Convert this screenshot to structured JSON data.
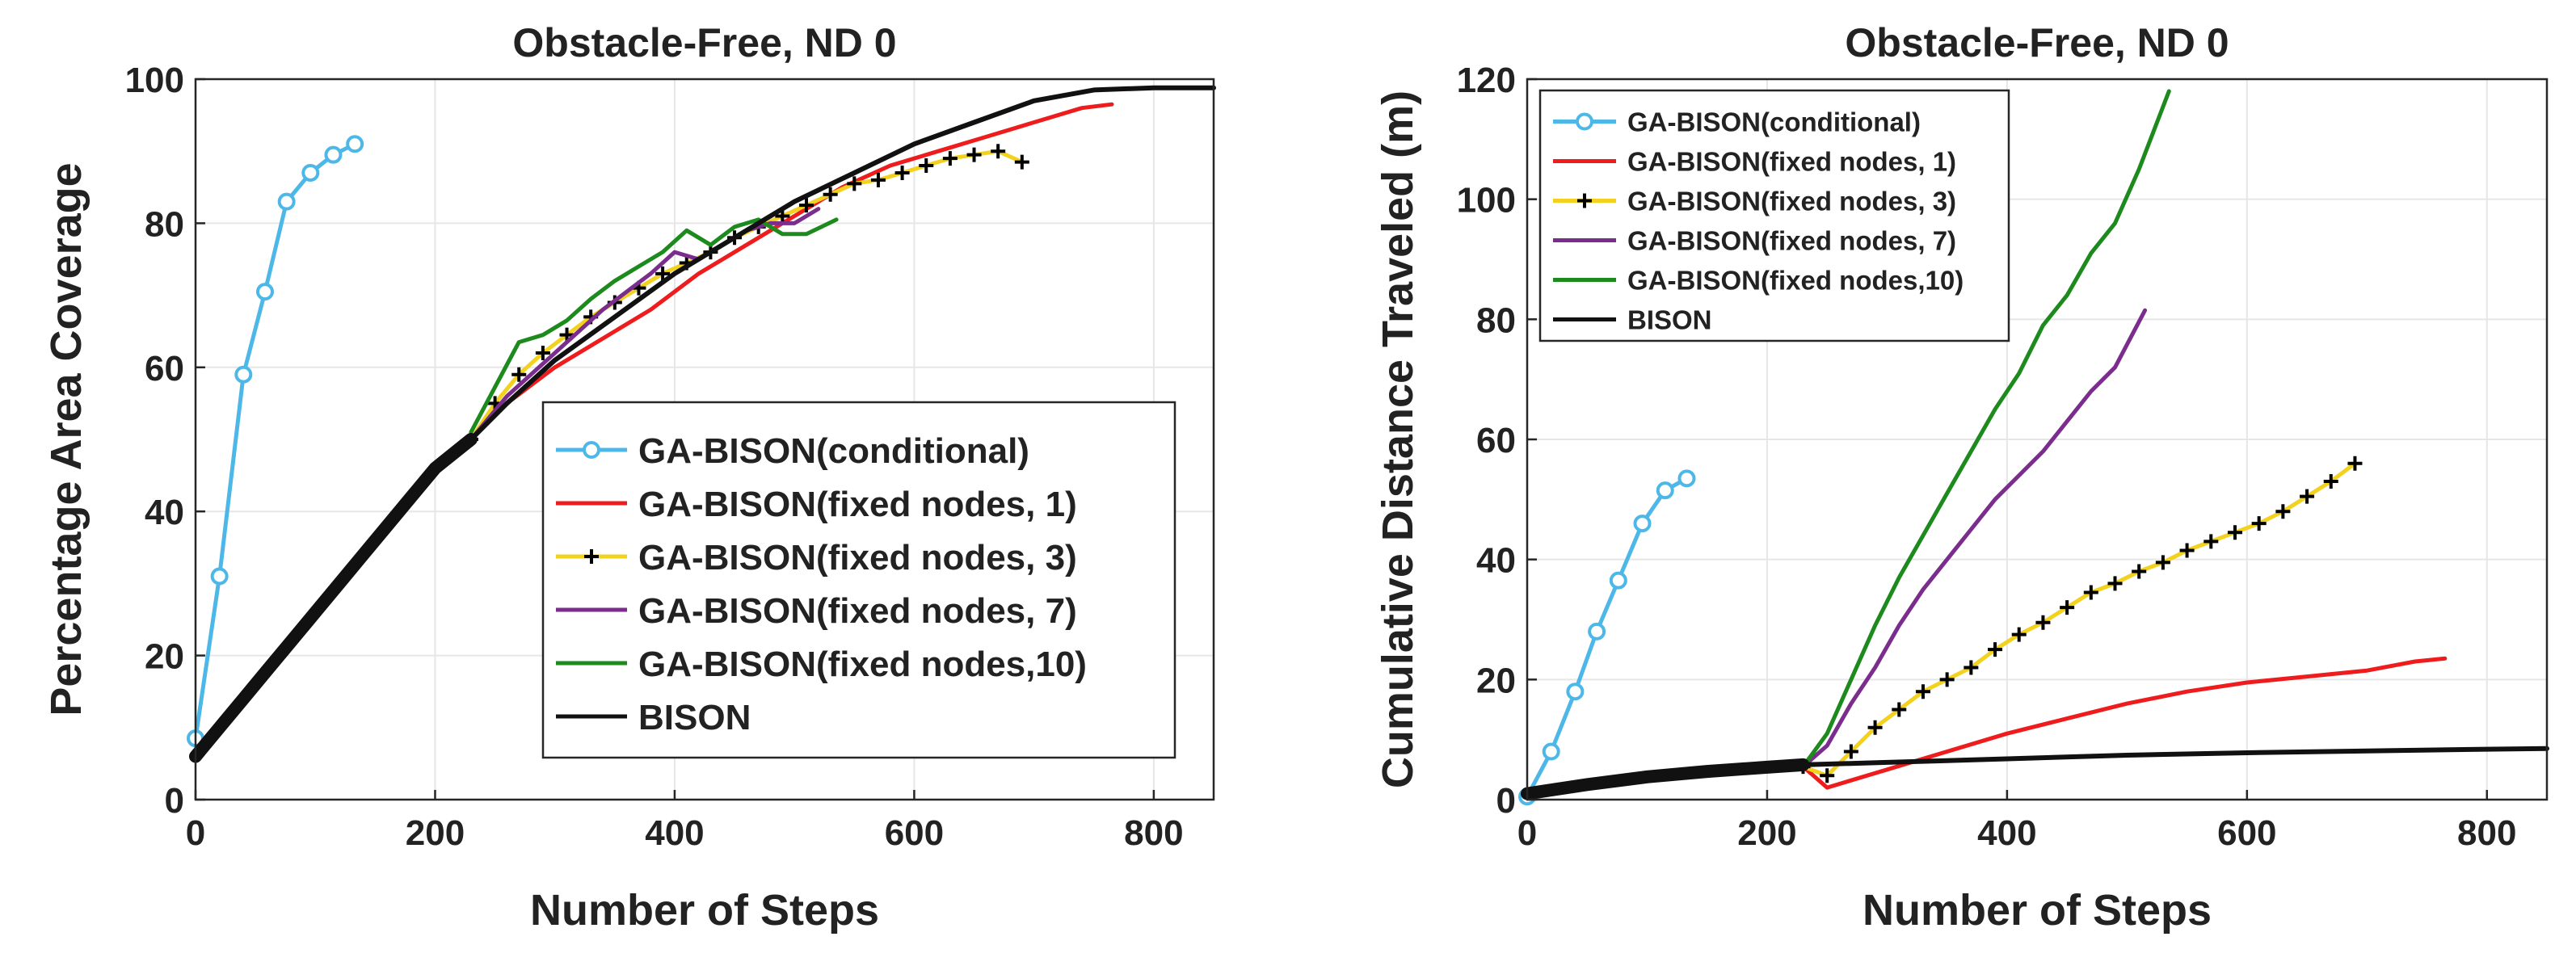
{
  "chart_data": [
    {
      "type": "line",
      "title": "Obstacle-Free, ND 0",
      "xlabel": "Number of Steps",
      "ylabel": "Percentage Area Coverage",
      "xlim": [
        0,
        850
      ],
      "ylim": [
        0,
        100
      ],
      "xticks": [
        0,
        200,
        400,
        600,
        800
      ],
      "yticks": [
        0,
        20,
        40,
        60,
        80,
        100
      ],
      "grid": true,
      "legend_position": "lower-right",
      "series": [
        {
          "name": "GA-BISON(conditional)",
          "color": "#4db8e8",
          "marker": "circle",
          "x": [
            0,
            20,
            40,
            58,
            76,
            96,
            115,
            133
          ],
          "y": [
            8.5,
            31,
            59,
            70.5,
            83,
            87,
            89.5,
            91
          ]
        },
        {
          "name": "GA-BISON(fixed nodes, 1)",
          "color": "#ee1c1c",
          "marker": "none",
          "x": [
            230,
            260,
            300,
            340,
            380,
            420,
            460,
            500,
            540,
            580,
            620,
            660,
            700,
            740,
            765
          ],
          "y": [
            50,
            55,
            60,
            64,
            68,
            73,
            77,
            81,
            85,
            88,
            90,
            92,
            94,
            96,
            96.5
          ]
        },
        {
          "name": "GA-BISON(fixed nodes, 3)",
          "color": "#f2d21e",
          "marker": "plus",
          "x": [
            230,
            250,
            270,
            290,
            310,
            330,
            350,
            370,
            390,
            410,
            430,
            450,
            470,
            490,
            510,
            530,
            550,
            570,
            590,
            610,
            630,
            650,
            670,
            690
          ],
          "y": [
            50,
            55,
            59,
            62,
            64.5,
            67,
            69,
            71,
            73,
            74.5,
            76,
            78,
            79.5,
            81,
            82.5,
            84,
            85.5,
            86,
            87,
            88,
            89,
            89.5,
            90,
            88.5
          ]
        },
        {
          "name": "GA-BISON(fixed nodes, 7)",
          "color": "#7b2d8e",
          "marker": "none",
          "x": [
            230,
            260,
            300,
            340,
            380,
            400,
            420,
            440,
            460,
            480,
            500,
            520
          ],
          "y": [
            50,
            56,
            62,
            68,
            73,
            76,
            75,
            77,
            79,
            80,
            80,
            82
          ]
        },
        {
          "name": "GA-BISON(fixed nodes,10)",
          "color": "#1c8a1c",
          "marker": "none",
          "x": [
            230,
            270,
            290,
            310,
            330,
            350,
            370,
            390,
            410,
            430,
            450,
            470,
            490,
            510,
            535
          ],
          "y": [
            51,
            63.5,
            64.5,
            66.5,
            69.5,
            72,
            74,
            76,
            79,
            77,
            79.5,
            80.5,
            78.5,
            78.5,
            80.5
          ]
        },
        {
          "name": "BISON",
          "color": "#111111",
          "marker": "none",
          "x": [
            0,
            20,
            40,
            60,
            80,
            100,
            120,
            140,
            160,
            180,
            200,
            230,
            260,
            300,
            350,
            400,
            450,
            500,
            550,
            600,
            650,
            700,
            750,
            800,
            850
          ],
          "y": [
            6,
            10,
            14,
            18,
            22,
            26,
            30,
            34,
            38,
            42,
            46,
            50,
            55,
            61,
            67,
            73,
            78,
            83,
            87,
            91,
            94,
            97,
            98.5,
            98.8,
            98.8
          ]
        }
      ]
    },
    {
      "type": "line",
      "title": "Obstacle-Free, ND 0",
      "xlabel": "Number of Steps",
      "ylabel": "Cumulative Distance Traveled (m)",
      "xlim": [
        0,
        850
      ],
      "ylim": [
        0,
        120
      ],
      "xticks": [
        0,
        200,
        400,
        600,
        800
      ],
      "yticks": [
        0,
        20,
        40,
        60,
        80,
        100,
        120
      ],
      "grid": true,
      "legend_position": "top-left",
      "series": [
        {
          "name": "GA-BISON(conditional)",
          "color": "#4db8e8",
          "marker": "circle",
          "x": [
            0,
            20,
            40,
            58,
            76,
            96,
            115,
            133
          ],
          "y": [
            0.5,
            8,
            18,
            28,
            36.5,
            46,
            51.5,
            53.5
          ]
        },
        {
          "name": "GA-BISON(fixed nodes, 1)",
          "color": "#ee1c1c",
          "marker": "none",
          "x": [
            230,
            250,
            300,
            350,
            400,
            450,
            500,
            550,
            600,
            650,
            700,
            740,
            765
          ],
          "y": [
            5.5,
            2,
            5,
            8,
            11,
            13.5,
            16,
            18,
            19.5,
            20.5,
            21.5,
            23,
            23.5
          ]
        },
        {
          "name": "GA-BISON(fixed nodes, 3)",
          "color": "#f2d21e",
          "marker": "plus",
          "x": [
            230,
            250,
            270,
            290,
            310,
            330,
            350,
            370,
            390,
            410,
            430,
            450,
            470,
            490,
            510,
            530,
            550,
            570,
            590,
            610,
            630,
            650,
            670,
            690
          ],
          "y": [
            5.5,
            4,
            8,
            12,
            15,
            18,
            20,
            22,
            25,
            27.5,
            29.5,
            32,
            34.5,
            36,
            38,
            39.5,
            41.5,
            43,
            44.5,
            46,
            48,
            50.5,
            53,
            56
          ]
        },
        {
          "name": "GA-BISON(fixed nodes, 7)",
          "color": "#7b2d8e",
          "marker": "none",
          "x": [
            230,
            250,
            270,
            290,
            310,
            330,
            350,
            370,
            390,
            410,
            430,
            450,
            470,
            490,
            515
          ],
          "y": [
            5.5,
            9,
            16,
            22,
            29,
            35,
            40,
            45,
            50,
            54,
            58,
            63,
            68,
            72,
            81.5
          ]
        },
        {
          "name": "GA-BISON(fixed nodes,10)",
          "color": "#1c8a1c",
          "marker": "none",
          "x": [
            230,
            250,
            270,
            290,
            310,
            330,
            350,
            370,
            390,
            410,
            430,
            450,
            470,
            490,
            510,
            535
          ],
          "y": [
            5.5,
            11,
            20,
            29,
            37,
            44,
            51,
            58,
            65,
            71,
            79,
            84,
            91,
            96,
            105,
            118
          ]
        },
        {
          "name": "BISON",
          "color": "#111111",
          "marker": "none",
          "x": [
            0,
            50,
            100,
            150,
            200,
            230,
            300,
            400,
            500,
            600,
            700,
            800,
            850
          ],
          "y": [
            1,
            2.5,
            3.8,
            4.7,
            5.4,
            5.8,
            6.2,
            6.8,
            7.4,
            7.8,
            8.1,
            8.4,
            8.5
          ]
        }
      ]
    }
  ]
}
